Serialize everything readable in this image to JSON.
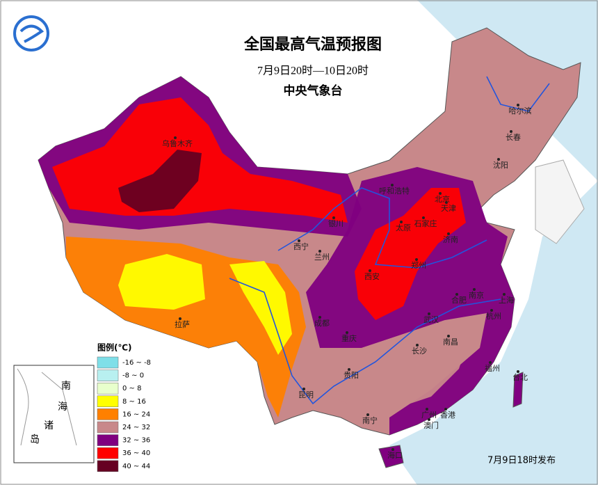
{
  "header": {
    "title": "全国最高气温预报图",
    "subtitle": "7月9日20时—10日20时",
    "agency": "中央气象台"
  },
  "legend": {
    "title": "图例(℃)",
    "items": [
      {
        "label": "-16 ~ -8",
        "color": "#7fdfe8"
      },
      {
        "label": "-8 ~ 0",
        "color": "#b8f0f0"
      },
      {
        "label": "0 ~ 8",
        "color": "#e8ffcc"
      },
      {
        "label": "8 ~ 16",
        "color": "#ffff00"
      },
      {
        "label": "16 ~ 24",
        "color": "#ff8000"
      },
      {
        "label": "24 ~ 32",
        "color": "#c8888a"
      },
      {
        "label": "32 ~ 36",
        "color": "#800080"
      },
      {
        "label": "36 ~ 40",
        "color": "#ff0000"
      },
      {
        "label": "40 ~ 44",
        "color": "#660022"
      }
    ]
  },
  "inset": {
    "label": [
      "南",
      "海",
      "诸",
      "岛"
    ]
  },
  "cities": [
    "乌鲁木齐",
    "哈尔滨",
    "长春",
    "沈阳",
    "呼和浩特",
    "北京",
    "天津",
    "银川",
    "太原",
    "石家庄",
    "济南",
    "西宁",
    "兰州",
    "郑州",
    "西安",
    "合肥",
    "南京",
    "上海",
    "成都",
    "武汉",
    "杭州",
    "拉萨",
    "重庆",
    "南昌",
    "长沙",
    "福州",
    "贵阳",
    "台北",
    "昆明",
    "南宁",
    "广州",
    "香港",
    "澳门",
    "海口"
  ],
  "footer": {
    "issued": "7月9日18时发布"
  }
}
